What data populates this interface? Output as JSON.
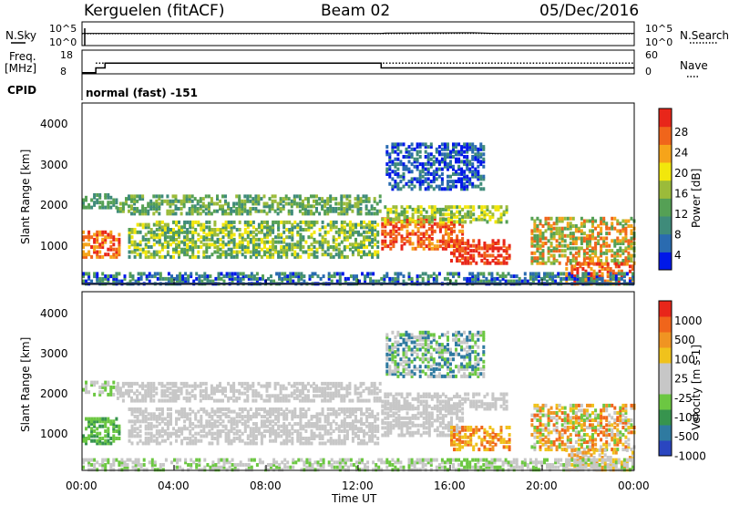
{
  "header": {
    "station": "Kerguelen (fitACF)",
    "beam": "Beam 02",
    "date": "05/Dec/2016"
  },
  "status_panels": {
    "nsky_label": "N.Sky",
    "nsearch_label": "N.Search",
    "freq_label_1": "Freq.",
    "freq_label_2": "[MHz]",
    "nave_label": "Nave",
    "cpid_label": "CPID",
    "cpid_text": "normal (fast) -151",
    "noise_ticks": [
      "10^5",
      "10^0"
    ],
    "freq_ticks": [
      "18",
      "8"
    ],
    "nave_ticks": [
      "60",
      "0"
    ]
  },
  "chart_data": [
    {
      "type": "line",
      "name": "noise",
      "x": [
        0,
        13,
        13.2,
        17,
        18,
        24
      ],
      "y_sky": [
        3.5,
        3.5,
        3.6,
        3.7,
        3.5,
        3.5
      ],
      "y_search": [
        3.4,
        3.4,
        3.4,
        3.5,
        3.4,
        3.4
      ],
      "xlim": [
        0,
        24
      ]
    },
    {
      "type": "line",
      "name": "frequency",
      "x": [
        0,
        0.6,
        0.6,
        1.0,
        1.0,
        13.0,
        13.0,
        24
      ],
      "freq": [
        8.5,
        8.5,
        10.5,
        10.5,
        12.5,
        12.5,
        10.5,
        10.5
      ],
      "nave_level": 12.5,
      "ylim": [
        8,
        18
      ],
      "xlim": [
        0,
        24
      ]
    },
    {
      "type": "heatmap",
      "name": "power",
      "ylabel": "Slant Range [km]",
      "colorbar_label": "Power [dB]",
      "colorbar_ticks": [
        "28",
        "24",
        "20",
        "16",
        "12",
        "8",
        "4"
      ],
      "colors": [
        "#0018e8",
        "#2a6bb0",
        "#3f8b7a",
        "#55a055",
        "#9bbb3a",
        "#f2e70c",
        "#f6a41a",
        "#f0651b",
        "#e8261a"
      ],
      "yticks": [
        "4000",
        "3000",
        "2000",
        "1000"
      ],
      "ylim": [
        200,
        4600
      ],
      "xlim": [
        0,
        24
      ]
    },
    {
      "type": "heatmap",
      "name": "velocity",
      "ylabel": "Slant Range [km]",
      "colorbar_label": "Velocity [m s-1]",
      "colorbar_ticks": [
        "1000",
        "500",
        "100",
        "25",
        "-25",
        "-100",
        "-500",
        "-1000"
      ],
      "colors": [
        "#2a46c0",
        "#2f7aa0",
        "#37944e",
        "#6cc742",
        "#c7c7c7",
        "#c7c7c7",
        "#f0c21c",
        "#f09422",
        "#f0651b",
        "#e8261a"
      ],
      "yticks": [
        "4000",
        "3000",
        "2000",
        "1000"
      ],
      "ylim": [
        200,
        4600
      ],
      "xlim": [
        0,
        24
      ]
    }
  ],
  "xaxis": {
    "ticks": [
      "00:00",
      "04:00",
      "08:00",
      "12:00",
      "16:00",
      "20:00",
      "00:00"
    ],
    "label": "Time UT"
  }
}
